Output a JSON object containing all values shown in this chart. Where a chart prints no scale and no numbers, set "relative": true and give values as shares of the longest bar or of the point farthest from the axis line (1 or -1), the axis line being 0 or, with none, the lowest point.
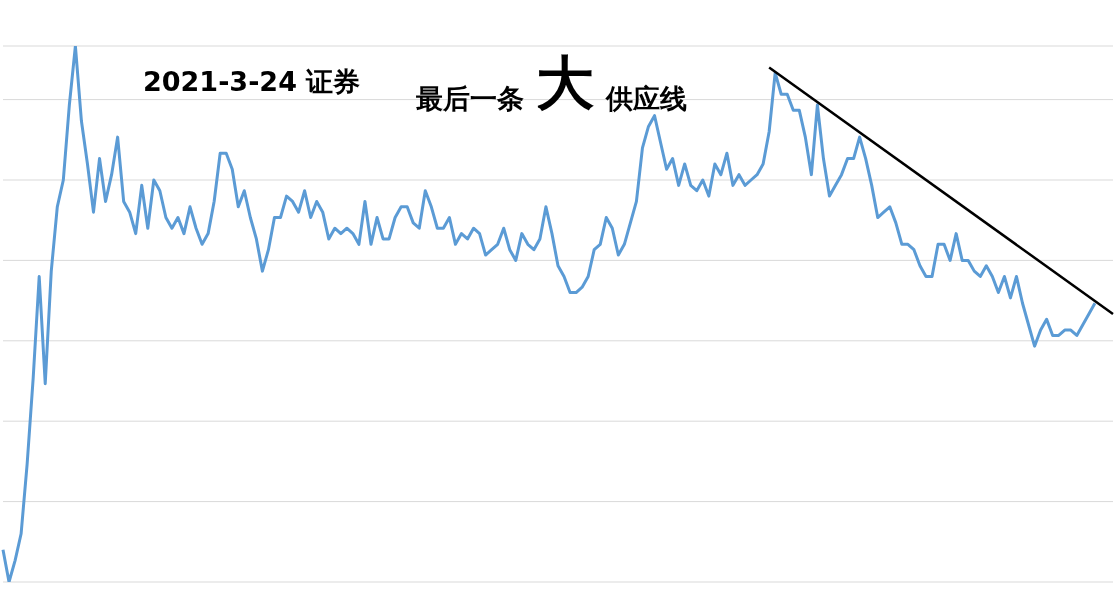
{
  "chart_data": {
    "type": "line",
    "title": "2021-3-24 证券",
    "subtitle": "最后一条 大 供应线",
    "relative": true,
    "grid": "y",
    "categories": [
      null,
      null,
      null,
      null,
      null,
      null,
      null,
      null,
      null,
      null,
      null,
      null,
      null,
      null,
      null,
      null,
      null,
      null,
      null,
      null,
      null,
      null,
      null,
      null,
      null,
      null,
      null,
      null,
      null,
      null,
      null,
      null,
      null,
      null,
      null,
      null,
      null,
      null,
      null,
      null,
      null,
      null,
      null,
      null,
      null,
      null,
      null,
      null,
      null,
      null,
      null,
      null,
      null,
      null,
      null,
      null,
      null,
      null,
      null,
      null,
      null,
      null,
      null,
      null,
      null,
      null,
      null,
      null,
      null,
      null,
      null,
      null,
      null,
      null,
      null,
      null,
      null,
      null,
      null,
      null,
      null,
      null,
      null,
      null,
      null,
      null,
      null,
      null,
      null,
      null,
      null,
      null,
      null,
      null,
      null,
      null,
      null,
      null,
      null,
      null,
      null,
      null,
      null,
      null,
      null,
      null,
      null,
      null,
      null,
      null,
      null,
      null,
      null,
      null,
      null,
      null,
      null,
      null,
      null,
      null,
      null,
      null,
      null,
      null,
      null,
      null,
      null,
      null,
      null,
      null,
      null,
      null,
      null,
      null,
      null,
      null,
      null,
      null,
      null,
      null,
      null,
      null,
      null,
      null,
      null,
      null,
      null,
      null,
      null,
      null,
      null,
      null,
      null,
      null,
      null,
      null,
      null,
      null,
      null,
      null,
      null,
      null,
      null,
      null,
      null,
      null,
      null,
      null,
      null,
      null,
      null,
      null,
      null,
      null,
      null,
      null,
      null,
      null,
      null,
      null,
      null,
      null,
      null,
      null,
      null
    ],
    "series": [
      {
        "color": "#5b9bd5",
        "values": [
          0.06,
          0,
          0.04,
          0.09,
          0.22,
          0.38,
          0.57,
          0.37,
          0.58,
          0.7,
          0.75,
          0.89,
          1,
          0.86,
          0.78,
          0.69,
          0.79,
          0.71,
          0.76,
          0.83,
          0.71,
          0.69,
          0.65,
          0.74,
          0.66,
          0.75,
          0.73,
          0.68,
          0.66,
          0.68,
          0.65,
          0.7,
          0.66,
          0.63,
          0.65,
          0.71,
          0.8,
          0.8,
          0.77,
          0.7,
          0.73,
          0.68,
          0.64,
          0.58,
          0.62,
          0.68,
          0.68,
          0.72,
          0.71,
          0.69,
          0.73,
          0.68,
          0.71,
          0.69,
          0.64,
          0.66,
          0.65,
          0.66,
          0.65,
          0.63,
          0.71,
          0.63,
          0.68,
          0.64,
          0.64,
          0.68,
          0.7,
          0.7,
          0.67,
          0.66,
          0.73,
          0.7,
          0.66,
          0.66,
          0.68,
          0.63,
          0.65,
          0.64,
          0.66,
          0.65,
          0.61,
          0.62,
          0.63,
          0.66,
          0.62,
          0.6,
          0.65,
          0.63,
          0.62,
          0.64,
          0.7,
          0.65,
          0.59,
          0.57,
          0.54,
          0.54,
          0.55,
          0.57,
          0.62,
          0.63,
          0.68,
          0.66,
          0.61,
          0.63,
          0.67,
          0.71,
          0.81,
          0.85,
          0.87,
          0.82,
          0.77,
          0.79,
          0.74,
          0.78,
          0.74,
          0.73,
          0.75,
          0.72,
          0.78,
          0.76,
          0.8,
          0.74,
          0.76,
          0.74,
          0.75,
          0.76,
          0.78,
          0.84,
          0.95,
          0.91,
          0.91,
          0.88,
          0.88,
          0.83,
          0.76,
          0.89,
          0.79,
          0.72,
          0.74,
          0.76,
          0.79,
          0.79,
          0.83,
          0.79,
          0.74,
          0.68,
          0.69,
          0.7,
          0.67,
          0.63,
          0.63,
          0.62,
          0.59,
          0.57,
          0.57,
          0.63,
          0.63,
          0.6,
          0.65,
          0.6,
          0.6,
          0.58,
          0.57,
          0.59,
          0.57,
          0.54,
          0.57,
          0.53,
          0.57,
          0.52,
          0.48,
          0.44,
          0.47,
          0.49,
          0.46,
          0.46,
          0.47,
          0.47,
          0.46,
          0.48,
          0.5,
          0.52,
          null,
          null,
          null
        ]
      },
      {
        "type": "line",
        "color": "#000000",
        "values": [
          null,
          null,
          null,
          null,
          null,
          null,
          null,
          null,
          null,
          null,
          null,
          null,
          null,
          null,
          null,
          null,
          null,
          null,
          null,
          null,
          null,
          null,
          null,
          null,
          null,
          null,
          null,
          null,
          null,
          null,
          null,
          null,
          null,
          null,
          null,
          null,
          null,
          null,
          null,
          null,
          null,
          null,
          null,
          null,
          null,
          null,
          null,
          null,
          null,
          null,
          null,
          null,
          null,
          null,
          null,
          null,
          null,
          null,
          null,
          null,
          null,
          null,
          null,
          null,
          null,
          null,
          null,
          null,
          null,
          null,
          null,
          null,
          null,
          null,
          null,
          null,
          null,
          null,
          null,
          null,
          null,
          null,
          null,
          null,
          null,
          null,
          null,
          null,
          null,
          null,
          null,
          null,
          null,
          null,
          null,
          null,
          null,
          null,
          null,
          null,
          null,
          null,
          null,
          null,
          null,
          null,
          null,
          null,
          null,
          null,
          null,
          null,
          null,
          null,
          null,
          null,
          null,
          null,
          null,
          null,
          null,
          null,
          null,
          null,
          null,
          null,
          null,
          0.96,
          null,
          null,
          null,
          null,
          null,
          null,
          null,
          null,
          null,
          null,
          null,
          null,
          null,
          null,
          null,
          null,
          null,
          null,
          null,
          null,
          null,
          null,
          null,
          null,
          null,
          null,
          null,
          null,
          null,
          null,
          null,
          null,
          null,
          null,
          null,
          null,
          null,
          null,
          null,
          null,
          null,
          null,
          null,
          null,
          null,
          null,
          null,
          null,
          null,
          null,
          null,
          null,
          null,
          null,
          null,
          null,
          0.5
        ]
      }
    ]
  }
}
